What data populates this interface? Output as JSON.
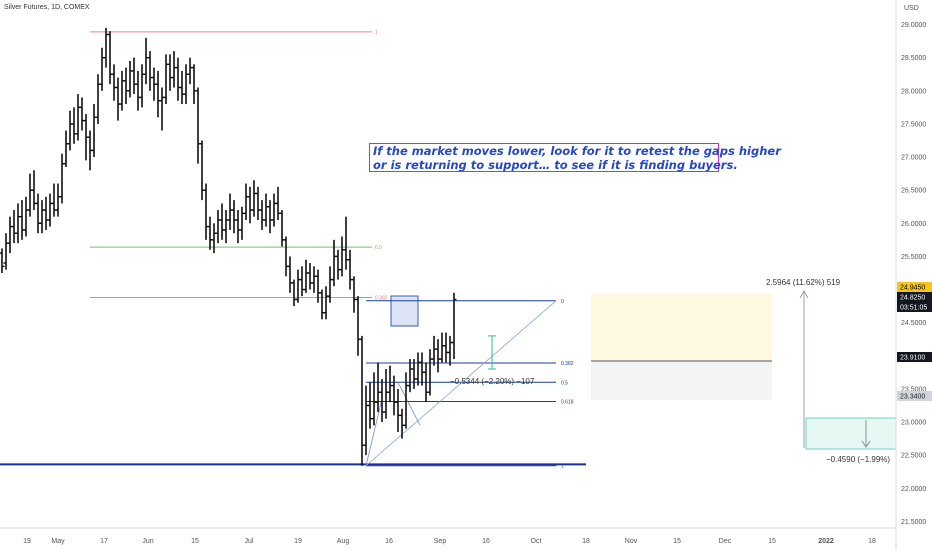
{
  "header": {
    "symbol": "Silver Futures, 1D, COMEX",
    "currency": "USD"
  },
  "annotation": {
    "line1": "If the market moves lower, look for it to retest the gaps higher",
    "line2": " or is returning to support… to see if it is finding buyers."
  },
  "chart_data": {
    "type": "ohlc",
    "y_axis": {
      "ticks": [
        "29.0000",
        "28.5000",
        "28.0000",
        "27.5000",
        "27.0000",
        "26.5000",
        "26.0000",
        "25.5000",
        "25.0000",
        "24.5000",
        "24.0000",
        "23.5000",
        "23.0000",
        "22.5000",
        "22.0000",
        "21.5000"
      ],
      "range": [
        21.4,
        29.25
      ]
    },
    "x_axis": {
      "ticks": [
        "19",
        "May",
        "17",
        "Jun",
        "15",
        "Jul",
        "19",
        "Aug",
        "16",
        "Sep",
        "16",
        "Oct",
        "18",
        "Nov",
        "15",
        "Dec",
        "15",
        "2022",
        "18"
      ],
      "bold_tick": "2022"
    },
    "price_labels": [
      {
        "text": "24.9450",
        "style": "yellow"
      },
      {
        "text": "24.8250",
        "style": "dark"
      },
      {
        "text": "03:51:05",
        "style": "dark"
      },
      {
        "text": "23.9100",
        "style": "dark"
      },
      {
        "text": "23.3400",
        "style": "grey"
      }
    ],
    "horizontal_levels": [
      {
        "price": 28.89,
        "label": "1",
        "color": "#f08080"
      },
      {
        "price": 25.64,
        "label": "0.5",
        "color": "#6cc36c"
      },
      {
        "price": 24.88,
        "label": "0.382",
        "color": "#f08080"
      }
    ],
    "support_line": {
      "price": 22.36,
      "color": "#1a2ea8"
    },
    "fib_retracement": {
      "levels": [
        {
          "label": "0",
          "price": 24.83
        },
        {
          "label": "0.382",
          "price": 23.89
        },
        {
          "label": "0.5",
          "price": 23.6
        },
        {
          "label": "0.618",
          "price": 23.31
        },
        {
          "label": "1",
          "price": 22.34
        }
      ],
      "color": "#1a3fa0"
    },
    "measure_labels": {
      "pullback": "−0.5344 (−2.20%) −107",
      "upside": "2.5964 (11.62%) 519",
      "downside": "−0.4590 (−1.99%)"
    },
    "bars": [
      [
        25.55,
        25.35,
        25.62,
        25.25
      ],
      [
        25.4,
        25.7,
        25.85,
        25.3
      ],
      [
        25.7,
        25.95,
        26.1,
        25.55
      ],
      [
        25.95,
        25.85,
        26.2,
        25.7
      ],
      [
        25.85,
        26.1,
        26.3,
        25.7
      ],
      [
        26.1,
        25.9,
        26.35,
        25.75
      ],
      [
        25.9,
        26.2,
        26.4,
        25.8
      ],
      [
        26.2,
        26.5,
        26.75,
        26.1
      ],
      [
        26.5,
        26.3,
        26.8,
        26.2
      ],
      [
        26.3,
        26.0,
        26.45,
        25.85
      ],
      [
        26.0,
        26.2,
        26.35,
        25.85
      ],
      [
        26.2,
        26.05,
        26.4,
        25.9
      ],
      [
        26.05,
        26.3,
        26.45,
        25.95
      ],
      [
        26.3,
        26.2,
        26.6,
        26.1
      ],
      [
        26.2,
        26.4,
        26.6,
        26.1
      ],
      [
        26.4,
        26.9,
        27.05,
        26.3
      ],
      [
        26.9,
        27.2,
        27.4,
        26.85
      ],
      [
        27.2,
        27.5,
        27.7,
        27.1
      ],
      [
        27.5,
        27.35,
        27.75,
        27.2
      ],
      [
        27.35,
        27.75,
        27.95,
        27.25
      ],
      [
        27.75,
        27.55,
        27.9,
        27.4
      ],
      [
        27.55,
        27.3,
        27.65,
        26.95
      ],
      [
        27.3,
        27.1,
        27.4,
        26.8
      ],
      [
        27.1,
        27.6,
        27.8,
        27.0
      ],
      [
        27.6,
        28.1,
        28.25,
        27.5
      ],
      [
        28.1,
        28.5,
        28.65,
        28.0
      ],
      [
        28.5,
        28.85,
        28.95,
        28.35
      ],
      [
        28.85,
        28.25,
        28.9,
        28.1
      ],
      [
        28.25,
        28.05,
        28.4,
        27.85
      ],
      [
        28.05,
        27.8,
        28.2,
        27.55
      ],
      [
        27.8,
        28.15,
        28.3,
        27.7
      ],
      [
        28.15,
        28.0,
        28.35,
        27.8
      ],
      [
        28.0,
        28.3,
        28.45,
        27.9
      ],
      [
        28.3,
        28.1,
        28.5,
        27.95
      ],
      [
        28.1,
        27.9,
        28.3,
        27.7
      ],
      [
        27.9,
        28.25,
        28.4,
        27.75
      ],
      [
        28.25,
        28.5,
        28.8,
        28.1
      ],
      [
        28.5,
        28.2,
        28.6,
        28.0
      ],
      [
        28.2,
        28.1,
        28.35,
        27.85
      ],
      [
        28.1,
        27.85,
        28.3,
        27.6
      ],
      [
        27.85,
        27.9,
        28.05,
        27.4
      ],
      [
        27.9,
        28.4,
        28.55,
        27.8
      ],
      [
        28.4,
        28.2,
        28.55,
        28.0
      ],
      [
        28.2,
        28.35,
        28.6,
        28.05
      ],
      [
        28.35,
        28.05,
        28.5,
        27.85
      ],
      [
        28.05,
        27.95,
        28.3,
        27.8
      ],
      [
        27.95,
        28.25,
        28.4,
        27.8
      ],
      [
        28.25,
        28.35,
        28.5,
        28.1
      ],
      [
        28.35,
        28.0,
        28.4,
        27.8
      ],
      [
        28.0,
        27.2,
        28.05,
        26.9
      ],
      [
        27.2,
        26.5,
        27.25,
        26.35
      ],
      [
        26.5,
        25.95,
        26.6,
        25.75
      ],
      [
        25.95,
        25.75,
        26.1,
        25.6
      ],
      [
        25.75,
        25.85,
        26.0,
        25.55
      ],
      [
        25.85,
        26.05,
        26.2,
        25.7
      ],
      [
        26.05,
        25.9,
        26.3,
        25.75
      ],
      [
        25.9,
        26.05,
        26.2,
        25.7
      ],
      [
        26.05,
        26.2,
        26.45,
        25.9
      ],
      [
        26.2,
        26.05,
        26.35,
        25.85
      ],
      [
        26.05,
        25.9,
        26.2,
        25.7
      ],
      [
        25.9,
        26.15,
        26.25,
        25.75
      ],
      [
        26.15,
        26.4,
        26.6,
        26.05
      ],
      [
        26.4,
        26.2,
        26.55,
        26.0
      ],
      [
        26.2,
        26.45,
        26.65,
        26.1
      ],
      [
        26.45,
        26.2,
        26.55,
        26.05
      ],
      [
        26.2,
        26.05,
        26.35,
        25.9
      ],
      [
        26.05,
        26.25,
        26.45,
        25.95
      ],
      [
        26.25,
        26.05,
        26.35,
        25.85
      ],
      [
        26.05,
        26.3,
        26.45,
        25.95
      ],
      [
        26.3,
        26.15,
        26.55,
        26.05
      ],
      [
        26.15,
        25.75,
        26.2,
        25.65
      ],
      [
        25.75,
        25.35,
        25.8,
        25.2
      ],
      [
        25.35,
        25.1,
        25.5,
        24.95
      ],
      [
        25.1,
        24.85,
        25.15,
        24.75
      ],
      [
        24.85,
        25.15,
        25.3,
        24.8
      ],
      [
        25.15,
        25.0,
        25.35,
        24.9
      ],
      [
        25.0,
        25.25,
        25.45,
        24.95
      ],
      [
        25.25,
        25.1,
        25.4,
        25.0
      ],
      [
        25.1,
        25.2,
        25.35,
        24.95
      ],
      [
        25.2,
        24.95,
        25.3,
        24.8
      ],
      [
        24.95,
        24.65,
        25.0,
        24.55
      ],
      [
        24.65,
        24.9,
        25.05,
        24.55
      ],
      [
        24.9,
        25.15,
        25.35,
        24.8
      ],
      [
        25.15,
        25.5,
        25.75,
        25.05
      ],
      [
        25.5,
        25.3,
        25.6,
        25.15
      ],
      [
        25.3,
        25.6,
        25.8,
        25.2
      ],
      [
        25.6,
        25.45,
        26.1,
        25.3
      ],
      [
        25.45,
        25.15,
        25.6,
        25.0
      ],
      [
        25.15,
        24.85,
        25.2,
        24.65
      ],
      [
        24.85,
        24.25,
        24.9,
        24.0
      ],
      [
        24.25,
        22.65,
        24.3,
        22.34
      ],
      [
        22.65,
        23.25,
        23.55,
        22.5
      ],
      [
        23.25,
        23.05,
        23.6,
        22.9
      ],
      [
        23.05,
        23.3,
        23.75,
        22.95
      ],
      [
        23.3,
        23.45,
        23.9,
        23.15
      ],
      [
        23.45,
        23.15,
        23.65,
        23.0
      ],
      [
        23.15,
        23.45,
        23.8,
        23.05
      ],
      [
        23.45,
        23.55,
        23.85,
        23.3
      ],
      [
        23.55,
        23.3,
        23.7,
        23.1
      ],
      [
        23.3,
        23.1,
        23.5,
        22.85
      ],
      [
        23.1,
        22.95,
        23.2,
        22.75
      ],
      [
        22.95,
        23.55,
        23.75,
        22.9
      ],
      [
        23.55,
        23.8,
        23.95,
        23.45
      ],
      [
        23.8,
        23.65,
        23.95,
        23.5
      ],
      [
        23.65,
        23.9,
        24.05,
        23.55
      ],
      [
        23.9,
        23.75,
        24.05,
        23.55
      ],
      [
        23.75,
        23.45,
        23.9,
        23.3
      ],
      [
        23.45,
        23.95,
        24.1,
        23.4
      ],
      [
        23.95,
        24.1,
        24.3,
        23.85
      ],
      [
        24.1,
        23.95,
        24.25,
        23.75
      ],
      [
        23.95,
        24.15,
        24.35,
        23.9
      ],
      [
        24.15,
        24.05,
        24.35,
        23.9
      ],
      [
        24.05,
        24.2,
        24.3,
        23.85
      ],
      [
        24.2,
        24.85,
        24.95,
        23.95
      ]
    ]
  }
}
